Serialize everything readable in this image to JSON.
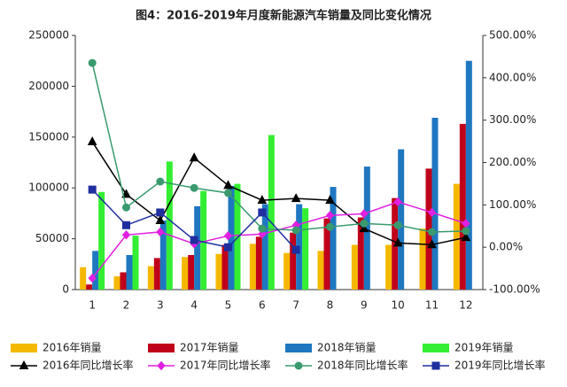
{
  "chart_data": {
    "type": "bar-line",
    "title": "图4：2016-2019年月度新能源汽车销量及同比变化情况",
    "categories": [
      "1",
      "2",
      "3",
      "4",
      "5",
      "6",
      "7",
      "8",
      "9",
      "10",
      "11",
      "12"
    ],
    "ylim": [
      0,
      250000
    ],
    "yticks": [
      0,
      50000,
      100000,
      150000,
      200000,
      250000
    ],
    "y2lim": [
      -100,
      500
    ],
    "y2ticks": [
      {
        "value": -100,
        "label": "-100.00%"
      },
      {
        "value": 0,
        "label": "0.00%"
      },
      {
        "value": 100,
        "label": "100.00%"
      },
      {
        "value": 200,
        "label": "200.00%"
      },
      {
        "value": 300,
        "label": "300.00%"
      },
      {
        "value": 400,
        "label": "400.00%"
      },
      {
        "value": 500,
        "label": "500.00%"
      }
    ],
    "series": [
      {
        "name": "2016年销量",
        "type": "bar",
        "color": "#f5b800",
        "values": [
          22000,
          13000,
          23000,
          32000,
          35000,
          45000,
          36000,
          38000,
          44000,
          44000,
          60000,
          104000
        ]
      },
      {
        "name": "2017年销量",
        "type": "bar",
        "color": "#c0001a",
        "values": [
          5000,
          17000,
          31000,
          34000,
          44000,
          52000,
          56000,
          70000,
          71000,
          90000,
          119000,
          163000
        ]
      },
      {
        "name": "2018年销量",
        "type": "bar",
        "color": "#1f77c0",
        "values": [
          38000,
          34000,
          68000,
          82000,
          102000,
          84000,
          84000,
          101000,
          121000,
          138000,
          169000,
          225000
        ]
      },
      {
        "name": "2019年销量",
        "type": "bar",
        "color": "#33ee33",
        "values": [
          96000,
          53000,
          126000,
          97000,
          104000,
          152000,
          80000,
          null,
          null,
          null,
          null,
          null
        ]
      },
      {
        "name": "2016年同比增长率",
        "type": "line",
        "axis": "y2",
        "marker": "triangle",
        "color": "#000000",
        "values": [
          249,
          125,
          63,
          211,
          146,
          111,
          115,
          111,
          44,
          10,
          6,
          23
        ]
      },
      {
        "name": "2017年同比增长率",
        "type": "line",
        "axis": "y2",
        "marker": "diamond",
        "color": "#e020e0",
        "values": [
          -73,
          29,
          36,
          8,
          27,
          31,
          52,
          75,
          79,
          107,
          82,
          56
        ]
      },
      {
        "name": "2018年同比增长率",
        "type": "line",
        "axis": "y2",
        "marker": "circle",
        "color": "#3a9a6e",
        "values": [
          435,
          94,
          155,
          140,
          128,
          44,
          40,
          48,
          56,
          52,
          36,
          38
        ]
      },
      {
        "name": "2019年同比增长率",
        "type": "line",
        "axis": "y2",
        "marker": "square",
        "color": "#1f2fa0",
        "values": [
          136,
          52,
          82,
          17,
          0,
          82,
          -6,
          null,
          null,
          null,
          null,
          null
        ]
      }
    ]
  }
}
